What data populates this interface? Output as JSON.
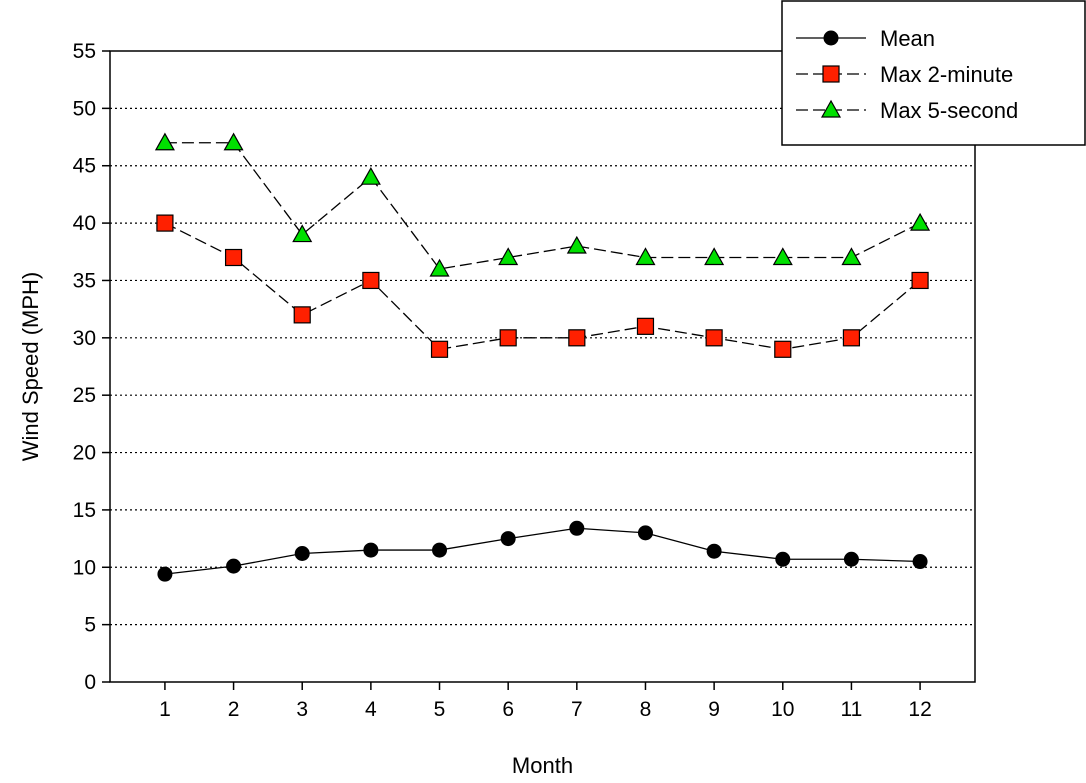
{
  "chart_data": {
    "type": "line",
    "title": "",
    "xlabel": "Month",
    "ylabel": "Wind Speed (MPH)",
    "x": [
      1,
      2,
      3,
      4,
      5,
      6,
      7,
      8,
      9,
      10,
      11,
      12
    ],
    "ylim": [
      0,
      55
    ],
    "yticks": [
      0,
      5,
      10,
      15,
      20,
      25,
      30,
      35,
      40,
      45,
      50,
      55
    ],
    "grid": "horizontal-dotted",
    "legend_position": "top-right",
    "series": [
      {
        "name": "Mean",
        "marker": "circle",
        "color": "#000000",
        "line": "solid",
        "values": [
          9.4,
          10.1,
          11.2,
          11.5,
          11.5,
          12.5,
          13.4,
          13.0,
          11.4,
          10.7,
          10.7,
          10.5
        ]
      },
      {
        "name": "Max 2-minute",
        "marker": "square",
        "color": "#ff2000",
        "line": "dashed",
        "values": [
          40,
          37,
          32,
          35,
          29,
          30,
          30,
          31,
          30,
          29,
          30,
          35
        ]
      },
      {
        "name": "Max 5-second",
        "marker": "triangle",
        "color": "#00e000",
        "line": "dashed",
        "values": [
          47,
          47,
          39,
          44,
          36,
          37,
          38,
          37,
          37,
          37,
          37,
          40
        ]
      }
    ]
  }
}
